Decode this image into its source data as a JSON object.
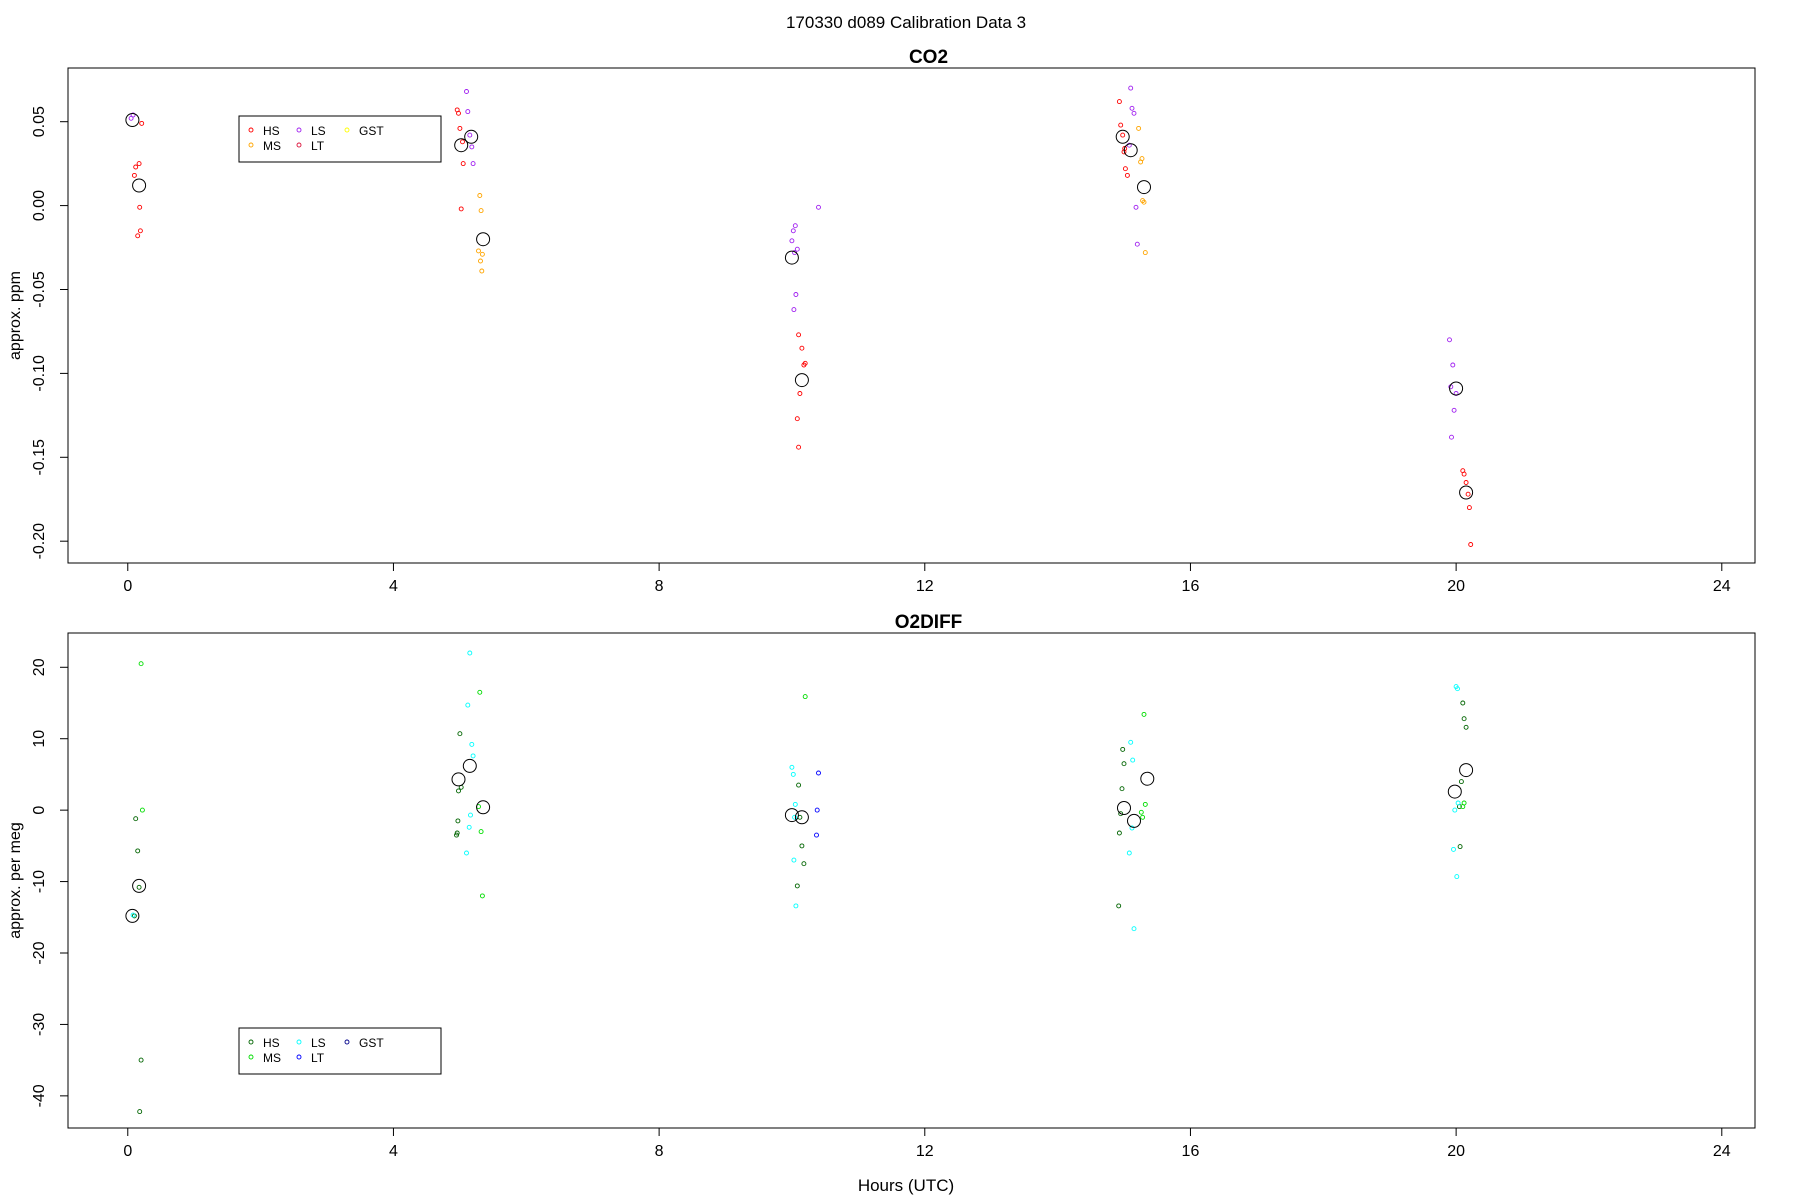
{
  "suptitle": "170330   d089   Calibration Data 3",
  "xlabel": "Hours (UTC)",
  "chart_data": [
    {
      "type": "scatter",
      "title": "CO2",
      "ylabel": "approx. ppm",
      "xlim": [
        -0.9,
        24.5
      ],
      "ylim": [
        -0.213,
        0.082
      ],
      "xticks": [
        0,
        4,
        8,
        12,
        16,
        20,
        24
      ],
      "yticks": [
        0.05,
        0.0,
        -0.05,
        -0.1,
        -0.15,
        -0.2
      ],
      "ytick_labels": [
        "0.05",
        "0.00",
        "-0.05",
        "-0.10",
        "-0.15",
        "-0.20"
      ],
      "legend": {
        "placement": "top-left",
        "entries": [
          {
            "label": "HS",
            "color": "#ff0000"
          },
          {
            "label": "MS",
            "color": "#ffa500"
          },
          {
            "label": "LS",
            "color": "#a020f0"
          },
          {
            "label": "LT",
            "color": "#dc143c"
          },
          {
            "label": "GST",
            "color": "#ffff00"
          }
        ]
      },
      "series": [
        {
          "label": "HS",
          "color": "#ff0000",
          "points": [
            [
              0.12,
              0.023
            ],
            [
              0.15,
              -0.018
            ],
            [
              0.17,
              0.025
            ],
            [
              0.18,
              -0.001
            ],
            [
              0.19,
              -0.015
            ],
            [
              0.21,
              0.049
            ],
            [
              0.1,
              0.018
            ],
            [
              4.96,
              0.057
            ],
            [
              5.0,
              0.046
            ],
            [
              5.04,
              0.038
            ],
            [
              5.02,
              -0.002
            ],
            [
              5.05,
              0.025
            ],
            [
              4.98,
              0.055
            ],
            [
              10.1,
              -0.077
            ],
            [
              10.15,
              -0.085
            ],
            [
              10.2,
              -0.094
            ],
            [
              10.12,
              -0.112
            ],
            [
              10.08,
              -0.127
            ],
            [
              10.1,
              -0.144
            ],
            [
              10.18,
              -0.095
            ],
            [
              14.95,
              0.048
            ],
            [
              14.98,
              0.042
            ],
            [
              15.0,
              0.032
            ],
            [
              15.02,
              0.022
            ],
            [
              15.05,
              0.018
            ],
            [
              14.93,
              0.062
            ],
            [
              15.01,
              0.034
            ],
            [
              20.1,
              -0.158
            ],
            [
              20.15,
              -0.165
            ],
            [
              20.18,
              -0.172
            ],
            [
              20.2,
              -0.18
            ],
            [
              20.22,
              -0.202
            ],
            [
              20.12,
              -0.16
            ]
          ]
        },
        {
          "label": "MS",
          "color": "#ffa500",
          "points": [
            [
              5.3,
              0.006
            ],
            [
              5.32,
              -0.003
            ],
            [
              5.28,
              -0.027
            ],
            [
              5.34,
              -0.029
            ],
            [
              5.31,
              -0.033
            ],
            [
              5.33,
              -0.039
            ],
            [
              15.25,
              0.026
            ],
            [
              15.28,
              0.003
            ],
            [
              15.3,
              0.002
            ],
            [
              15.32,
              -0.028
            ],
            [
              15.22,
              0.046
            ],
            [
              15.27,
              0.028
            ]
          ]
        },
        {
          "label": "LS",
          "color": "#a020f0",
          "points": [
            [
              0.05,
              0.052
            ],
            [
              0.08,
              0.054
            ],
            [
              5.1,
              0.068
            ],
            [
              5.12,
              0.056
            ],
            [
              5.15,
              0.042
            ],
            [
              5.18,
              0.035
            ],
            [
              5.2,
              0.025
            ],
            [
              10.05,
              -0.012
            ],
            [
              10.02,
              -0.015
            ],
            [
              10.0,
              -0.021
            ],
            [
              10.08,
              -0.026
            ],
            [
              10.04,
              -0.028
            ],
            [
              10.06,
              -0.053
            ],
            [
              10.03,
              -0.062
            ],
            [
              10.4,
              -0.001
            ],
            [
              15.1,
              0.07
            ],
            [
              15.12,
              0.058
            ],
            [
              15.15,
              0.055
            ],
            [
              15.08,
              0.036
            ],
            [
              15.18,
              -0.001
            ],
            [
              15.2,
              -0.023
            ],
            [
              19.9,
              -0.08
            ],
            [
              19.95,
              -0.095
            ],
            [
              20.0,
              -0.112
            ],
            [
              19.97,
              -0.122
            ],
            [
              19.93,
              -0.138
            ],
            [
              19.92,
              -0.108
            ]
          ]
        },
        {
          "label": "mean",
          "color": "#000000",
          "points": [
            [
              0.07,
              0.051
            ],
            [
              0.17,
              0.012
            ],
            [
              5.02,
              0.036
            ],
            [
              5.17,
              0.041
            ],
            [
              5.35,
              -0.02
            ],
            [
              10.0,
              -0.031
            ],
            [
              10.15,
              -0.104
            ],
            [
              14.98,
              0.041
            ],
            [
              15.1,
              0.033
            ],
            [
              15.3,
              0.011
            ],
            [
              20.0,
              -0.109
            ],
            [
              20.15,
              -0.171
            ]
          ]
        }
      ]
    },
    {
      "type": "scatter",
      "title": "O2DIFF",
      "ylabel": "approx. per meg",
      "xlim": [
        -0.9,
        24.5
      ],
      "ylim": [
        -44.5,
        24.8
      ],
      "xticks": [
        0,
        4,
        8,
        12,
        16,
        20,
        24
      ],
      "yticks": [
        20,
        10,
        0,
        -10,
        -20,
        -30,
        -40
      ],
      "ytick_labels": [
        "20",
        "10",
        "0",
        "-10",
        "-20",
        "-30",
        "-40"
      ],
      "legend": {
        "placement": "bottom-left",
        "entries": [
          {
            "label": "HS",
            "color": "#006400"
          },
          {
            "label": "MS",
            "color": "#00dd00"
          },
          {
            "label": "LS",
            "color": "#00ffff"
          },
          {
            "label": "LT",
            "color": "#0000ff"
          },
          {
            "label": "GST",
            "color": "#00008b"
          }
        ]
      },
      "series": [
        {
          "label": "HS",
          "color": "#006400",
          "points": [
            [
              0.12,
              -1.2
            ],
            [
              0.15,
              -5.7
            ],
            [
              0.17,
              -10.8
            ],
            [
              0.2,
              -35.0
            ],
            [
              0.18,
              -42.2
            ],
            [
              0.1,
              -14.8
            ],
            [
              5.0,
              10.7
            ],
            [
              4.98,
              2.7
            ],
            [
              5.02,
              3.2
            ],
            [
              4.96,
              -3.2
            ],
            [
              4.97,
              -1.5
            ],
            [
              4.95,
              -3.5
            ],
            [
              10.1,
              3.5
            ],
            [
              10.12,
              -1.0
            ],
            [
              10.15,
              -5.0
            ],
            [
              10.18,
              -7.5
            ],
            [
              10.08,
              -10.6
            ],
            [
              14.98,
              8.5
            ],
            [
              15.0,
              6.5
            ],
            [
              14.97,
              3.0
            ],
            [
              14.95,
              -0.5
            ],
            [
              14.93,
              -3.2
            ],
            [
              14.92,
              -13.4
            ],
            [
              20.1,
              15.0
            ],
            [
              20.12,
              12.8
            ],
            [
              20.15,
              11.6
            ],
            [
              20.08,
              4.0
            ],
            [
              20.05,
              0.5
            ],
            [
              20.06,
              -5.1
            ]
          ]
        },
        {
          "label": "MS",
          "color": "#00dd00",
          "points": [
            [
              0.2,
              20.5
            ],
            [
              0.22,
              0.0
            ],
            [
              5.3,
              16.5
            ],
            [
              5.28,
              0.5
            ],
            [
              5.32,
              -3.0
            ],
            [
              5.34,
              -12.0
            ],
            [
              10.2,
              15.9
            ],
            [
              15.3,
              13.4
            ],
            [
              15.32,
              0.8
            ],
            [
              15.28,
              -1.0
            ],
            [
              15.26,
              -0.3
            ],
            [
              20.1,
              0.5
            ],
            [
              20.12,
              1.0
            ]
          ]
        },
        {
          "label": "LS",
          "color": "#00ffff",
          "points": [
            [
              0.08,
              -14.7
            ],
            [
              5.15,
              22.0
            ],
            [
              5.12,
              14.7
            ],
            [
              5.18,
              9.2
            ],
            [
              5.2,
              7.6
            ],
            [
              5.16,
              -0.7
            ],
            [
              5.14,
              -2.4
            ],
            [
              5.1,
              -6.0
            ],
            [
              10.0,
              6.0
            ],
            [
              10.02,
              5.0
            ],
            [
              10.05,
              0.8
            ],
            [
              10.04,
              -1.0
            ],
            [
              10.03,
              -7.0
            ],
            [
              10.06,
              -13.4
            ],
            [
              15.1,
              9.5
            ],
            [
              15.13,
              7.0
            ],
            [
              15.12,
              -2.5
            ],
            [
              15.08,
              -6.0
            ],
            [
              15.15,
              -16.6
            ],
            [
              20.0,
              17.3
            ],
            [
              20.02,
              17.0
            ],
            [
              19.98,
              0.0
            ],
            [
              19.96,
              -5.5
            ],
            [
              20.01,
              -9.3
            ],
            [
              20.03,
              1.0
            ]
          ]
        },
        {
          "label": "LT",
          "color": "#0000ff",
          "points": [
            [
              10.4,
              5.2
            ],
            [
              10.38,
              0.0
            ],
            [
              10.37,
              -3.5
            ]
          ]
        },
        {
          "label": "mean",
          "color": "#000000",
          "points": [
            [
              0.07,
              -14.8
            ],
            [
              0.17,
              -10.6
            ],
            [
              4.98,
              4.3
            ],
            [
              5.15,
              6.2
            ],
            [
              5.35,
              0.4
            ],
            [
              10.0,
              -0.7
            ],
            [
              10.15,
              -1.0
            ],
            [
              15.0,
              0.3
            ],
            [
              15.15,
              -1.5
            ],
            [
              15.35,
              4.4
            ],
            [
              19.98,
              2.6
            ],
            [
              20.15,
              5.6
            ]
          ]
        }
      ]
    }
  ]
}
